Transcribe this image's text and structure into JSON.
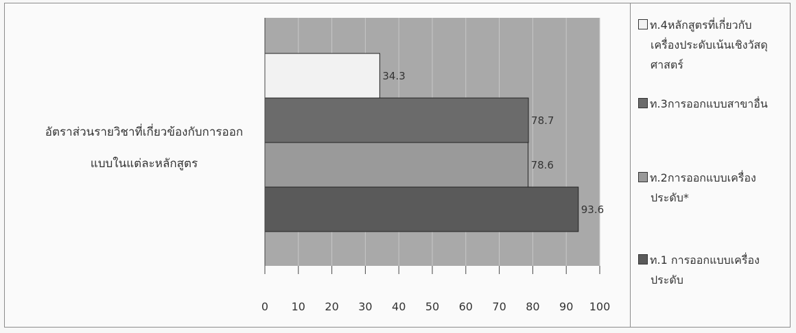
{
  "chart_data": {
    "type": "bar",
    "orientation": "horizontal",
    "category_label_lines": [
      "อัตราส่วนรายวิชาที่เกี่ยวข้องกับการออก",
      "แบบในแต่ละหลักสูตร"
    ],
    "series": [
      {
        "name": "ท.4หลักสูตรที่เกี่ยวกับเครื่องประดับเน้นเชิงวัสดุศาสตร์",
        "legend_lines": [
          "ท.4หลักสูตรที่เกี่ยวกับ",
          "เครื่องประดับเน้นเชิงวัสดุ",
          "ศาสตร์"
        ],
        "value": 34.3,
        "label": "34.3",
        "color": "#f2f2f2"
      },
      {
        "name": "ท.3การออกแบบสาขาอื่น",
        "legend_lines": [
          "ท.3การออกแบบสาขาอื่น"
        ],
        "value": 78.7,
        "label": "78.7",
        "color": "#6b6b6b"
      },
      {
        "name": "ท.2การออกแบบเครื่องประดับ*",
        "legend_lines": [
          "ท.2การออกแบบเครื่อง",
          "ประดับ*"
        ],
        "value": 78.6,
        "label": "78.6",
        "color": "#9a9a9a"
      },
      {
        "name": "ท.1 การออกแบบเครื่องประดับ",
        "legend_lines": [
          "ท.1 การออกแบบเครื่อง",
          "ประดับ"
        ],
        "value": 93.6,
        "label": "93.6",
        "color": "#5a5a5a"
      }
    ],
    "xlim": [
      0,
      100
    ],
    "xticks": [
      "0",
      "10",
      "20",
      "30",
      "40",
      "50",
      "60",
      "70",
      "80",
      "90",
      "100"
    ],
    "plot_background": "#a9a9a9",
    "grid": true,
    "legend_position": "right"
  }
}
